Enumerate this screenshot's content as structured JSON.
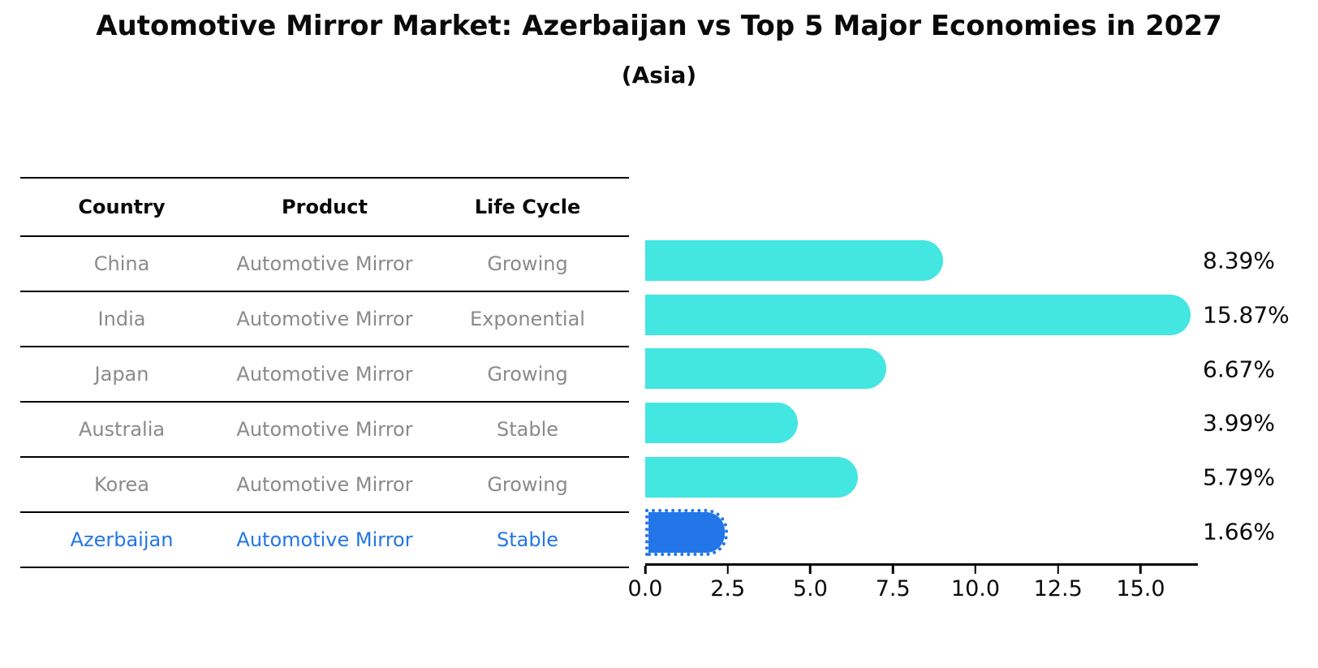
{
  "title": "Automotive Mirror Market: Azerbaijan vs Top 5 Major Economies in 2027",
  "subtitle": "(Asia)",
  "table": {
    "headers": [
      "Country",
      "Product",
      "Life Cycle"
    ],
    "rows": [
      {
        "country": "China",
        "product": "Automotive Mirror",
        "life_cycle": "Growing"
      },
      {
        "country": "India",
        "product": "Automotive Mirror",
        "life_cycle": "Exponential"
      },
      {
        "country": "Japan",
        "product": "Automotive Mirror",
        "life_cycle": "Growing"
      },
      {
        "country": "Australia",
        "product": "Automotive Mirror",
        "life_cycle": "Stable"
      },
      {
        "country": "Korea",
        "product": "Automotive Mirror",
        "life_cycle": "Growing"
      },
      {
        "country": "Azerbaijan",
        "product": "Automotive Mirror",
        "life_cycle": "Stable"
      }
    ],
    "highlight_row": "Azerbaijan"
  },
  "chart_data": {
    "type": "bar",
    "orientation": "horizontal",
    "title": "Automotive Mirror Market: Azerbaijan vs Top 5 Major Economies in 2027 (Asia)",
    "categories": [
      "China",
      "India",
      "Japan",
      "Australia",
      "Korea",
      "Azerbaijan"
    ],
    "values": [
      8.39,
      15.87,
      6.67,
      3.99,
      5.79,
      1.66
    ],
    "value_labels": [
      "8.39%",
      "15.87%",
      "6.67%",
      "3.99%",
      "5.79%",
      "1.66%"
    ],
    "highlight_index": 5,
    "xlim": [
      0,
      16.66
    ],
    "x_ticks": [
      {
        "value": 0,
        "label": "0.0"
      },
      {
        "value": 2.5,
        "label": "2.5"
      },
      {
        "value": 5,
        "label": "5.0"
      },
      {
        "value": 7.5,
        "label": "7.5"
      },
      {
        "value": 10,
        "label": "10.0"
      },
      {
        "value": 12.5,
        "label": "12.5"
      },
      {
        "value": 15,
        "label": "15.0"
      }
    ],
    "grid": false,
    "legend": false,
    "xlabel": "",
    "ylabel": ""
  },
  "colors": {
    "bar": "#43E6E1",
    "highlight": "#2376E8",
    "table_text": "#8a8a8a",
    "highlight_text": "#2376E8",
    "axis": "#000000"
  }
}
